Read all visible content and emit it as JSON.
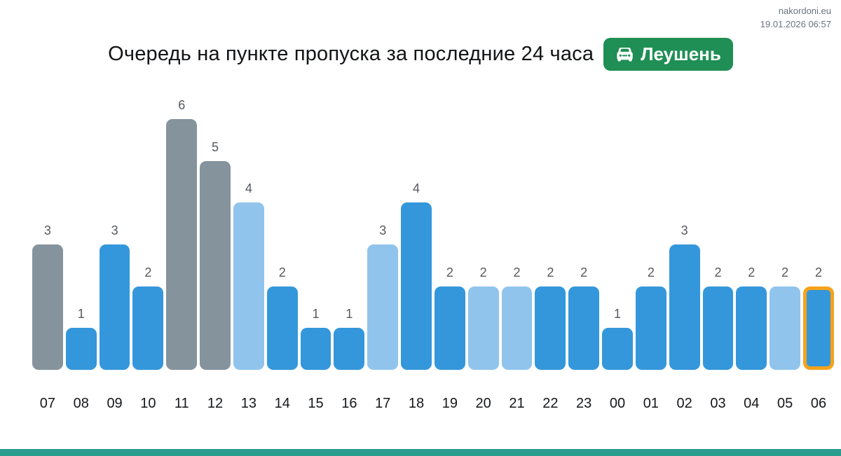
{
  "meta": {
    "site": "nakordoni.eu",
    "datetime": "19.01.2026 06:57"
  },
  "header": {
    "title": "Очередь на пункте пропуска за последние 24 часа",
    "checkpoint_badge": {
      "label": "Леушень",
      "icon": "car-front-icon",
      "background": "#1f8f55",
      "text_color": "#ffffff"
    }
  },
  "chart_data": {
    "type": "bar",
    "title": "Очередь на пункте пропуска за последние 24 часа",
    "xlabel": "",
    "ylabel": "",
    "ylim": [
      0,
      6
    ],
    "grid": false,
    "legend": false,
    "value_labels_shown": true,
    "categories": [
      "07",
      "08",
      "09",
      "10",
      "11",
      "12",
      "13",
      "14",
      "15",
      "16",
      "17",
      "18",
      "19",
      "20",
      "21",
      "22",
      "23",
      "00",
      "01",
      "02",
      "03",
      "04",
      "05",
      "06"
    ],
    "values": [
      3,
      1,
      3,
      2,
      6,
      5,
      4,
      2,
      1,
      1,
      3,
      4,
      2,
      2,
      2,
      2,
      2,
      1,
      2,
      3,
      2,
      2,
      2,
      2
    ],
    "bars": [
      {
        "hour": "07",
        "value": 3,
        "style": "gray",
        "current": false
      },
      {
        "hour": "08",
        "value": 1,
        "style": "blue",
        "current": false
      },
      {
        "hour": "09",
        "value": 3,
        "style": "blue",
        "current": false
      },
      {
        "hour": "10",
        "value": 2,
        "style": "blue",
        "current": false
      },
      {
        "hour": "11",
        "value": 6,
        "style": "gray",
        "current": false
      },
      {
        "hour": "12",
        "value": 5,
        "style": "gray",
        "current": false
      },
      {
        "hour": "13",
        "value": 4,
        "style": "light_blue",
        "current": false
      },
      {
        "hour": "14",
        "value": 2,
        "style": "blue",
        "current": false
      },
      {
        "hour": "15",
        "value": 1,
        "style": "blue",
        "current": false
      },
      {
        "hour": "16",
        "value": 1,
        "style": "blue",
        "current": false
      },
      {
        "hour": "17",
        "value": 3,
        "style": "light_blue",
        "current": false
      },
      {
        "hour": "18",
        "value": 4,
        "style": "blue",
        "current": false
      },
      {
        "hour": "19",
        "value": 2,
        "style": "blue",
        "current": false
      },
      {
        "hour": "20",
        "value": 2,
        "style": "light_blue",
        "current": false
      },
      {
        "hour": "21",
        "value": 2,
        "style": "light_blue",
        "current": false
      },
      {
        "hour": "22",
        "value": 2,
        "style": "blue",
        "current": false
      },
      {
        "hour": "23",
        "value": 2,
        "style": "blue",
        "current": false
      },
      {
        "hour": "00",
        "value": 1,
        "style": "blue",
        "current": false
      },
      {
        "hour": "01",
        "value": 2,
        "style": "blue",
        "current": false
      },
      {
        "hour": "02",
        "value": 3,
        "style": "blue",
        "current": false
      },
      {
        "hour": "03",
        "value": 2,
        "style": "blue",
        "current": false
      },
      {
        "hour": "04",
        "value": 2,
        "style": "blue",
        "current": false
      },
      {
        "hour": "05",
        "value": 2,
        "style": "light_blue",
        "current": false
      },
      {
        "hour": "06",
        "value": 2,
        "style": "blue",
        "current": true
      }
    ],
    "colors": {
      "blue": "#3497db",
      "light_blue": "#90c4ec",
      "gray": "#85939d",
      "highlight_outline": "#f5a21b",
      "value_label": "#55595e",
      "hour_label": "#15171a"
    }
  },
  "footer": {
    "bar_color": "#2a9d8f"
  }
}
